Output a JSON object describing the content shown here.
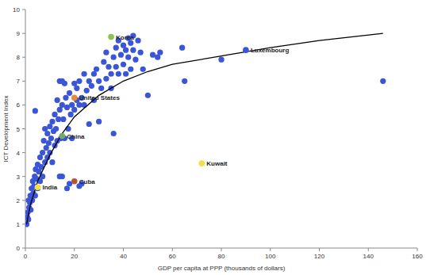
{
  "chart_data": {
    "type": "scatter",
    "x_label": "GDP per capita at PPP (thousands of dollars)",
    "y_label": "ICT Development Index",
    "xlim": [
      0,
      160
    ],
    "xticks": [
      0,
      20,
      40,
      60,
      80,
      100,
      120,
      140,
      160
    ],
    "ylim": [
      0,
      10
    ],
    "yticks": [
      0,
      1,
      2,
      3,
      4,
      5,
      6,
      7,
      8,
      9,
      10
    ],
    "grid": false,
    "series": [
      {
        "type": "scatter",
        "marker": "circle",
        "color": "#3b55d9",
        "x": [
          0.5,
          0.8,
          1,
          1.2,
          1.5,
          1.3,
          1.8,
          2,
          2.2,
          2.5,
          2.8,
          3,
          3.2,
          3.5,
          3.8,
          4,
          4.2,
          4.5,
          5,
          5,
          5.5,
          6,
          6,
          6.5,
          7,
          7,
          7.5,
          8,
          8,
          8.5,
          9,
          9,
          9.5,
          10,
          10,
          10.5,
          11,
          11,
          11.5,
          12,
          12,
          12.5,
          13,
          13,
          13.5,
          14,
          14,
          14.5,
          15,
          15,
          15.5,
          16,
          16,
          16.5,
          17,
          17,
          17.5,
          18,
          18,
          18.5,
          19,
          19,
          20,
          20,
          21,
          21,
          22,
          22,
          23,
          24,
          24,
          25,
          26,
          26,
          27,
          28,
          28,
          29,
          30,
          30,
          31,
          32,
          33,
          33,
          34,
          35,
          35,
          36,
          36,
          37,
          37,
          38,
          38,
          39,
          40,
          40,
          41,
          41,
          42,
          42,
          43,
          43,
          44,
          44,
          45,
          46,
          47,
          48,
          50,
          52,
          54,
          55,
          64,
          65,
          80,
          146,
          4,
          14,
          15,
          22,
          23
        ],
        "values": [
          1.0,
          1.3,
          1.5,
          1.2,
          1.7,
          2.0,
          1.9,
          2.2,
          1.6,
          2.5,
          2.0,
          2.8,
          2.3,
          2.6,
          3.0,
          2.2,
          3.3,
          2.9,
          3.5,
          2.5,
          3.2,
          3.8,
          2.8,
          3.4,
          4.0,
          3.0,
          4.5,
          3.6,
          5.0,
          4.2,
          3.8,
          4.8,
          4.4,
          5.1,
          4.0,
          4.6,
          5.3,
          3.6,
          4.9,
          5.6,
          4.3,
          5.0,
          6.2,
          4.5,
          5.4,
          5.8,
          3.0,
          4.6,
          6.0,
          3.0,
          5.4,
          6.9,
          4.6,
          6.3,
          5.9,
          2.5,
          5.0,
          6.5,
          2.7,
          5.6,
          6.0,
          4.6,
          6.9,
          5.8,
          6.2,
          6.7,
          6.0,
          7.0,
          6.3,
          7.3,
          6.0,
          6.6,
          7.0,
          5.2,
          6.8,
          7.3,
          6.2,
          7.5,
          5.3,
          7.0,
          6.7,
          7.8,
          7.1,
          8.2,
          7.6,
          7.3,
          6.7,
          8.0,
          4.8,
          8.4,
          7.6,
          8.7,
          7.3,
          8.1,
          8.5,
          7.7,
          8.3,
          7.3,
          8.8,
          8.0,
          8.6,
          7.5,
          8.3,
          8.9,
          7.9,
          8.7,
          8.2,
          7.5,
          6.4,
          8.1,
          8.0,
          8.2,
          8.4,
          7.0,
          7.9,
          7.0,
          5.75,
          7.0,
          7.0,
          2.6,
          2.7
        ]
      },
      {
        "type": "line",
        "line_style": "solid",
        "color": "#000000",
        "x": [
          0.5,
          2,
          5,
          10,
          15,
          20,
          30,
          40,
          50,
          60,
          80,
          100,
          120,
          146
        ],
        "values": [
          1.0,
          1.8,
          2.8,
          3.9,
          4.8,
          5.5,
          6.4,
          7.0,
          7.4,
          7.7,
          8.05,
          8.4,
          8.7,
          9.0
        ]
      }
    ],
    "annotations": [
      {
        "text": "Korea",
        "x": 35,
        "y": 8.85,
        "color": "#8dc24f"
      },
      {
        "text": "United States",
        "x": 20,
        "y": 6.3,
        "color": "#e8883a"
      },
      {
        "text": "China",
        "x": 15,
        "y": 4.7,
        "color": "#6fae6a"
      },
      {
        "text": "India",
        "x": 5,
        "y": 2.55,
        "color": "#f0e04a"
      },
      {
        "text": "Cuba",
        "x": 20,
        "y": 2.8,
        "color": "#b5553a"
      },
      {
        "text": "Kuwait",
        "x": 72,
        "y": 3.55,
        "color": "#f0e04a"
      },
      {
        "text": "Luxembourg",
        "x": 90,
        "y": 8.3,
        "color": "#3b55d9"
      }
    ]
  }
}
